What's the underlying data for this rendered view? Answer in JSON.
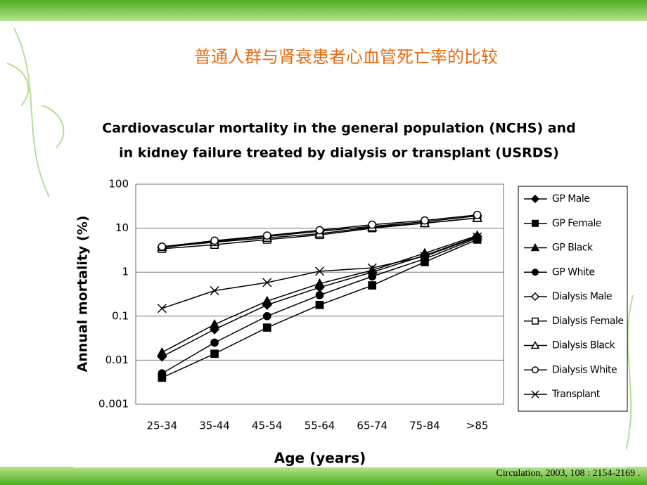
{
  "slide_title": "普通人群与肾衰患者心血管死亡率的比较",
  "citation": "Circulation, 2003, 108 : 2154-2169 .",
  "chart_data": {
    "type": "line",
    "title": [
      "Cardiovascular mortality in the general population (NCHS) and",
      "in kidney failure treated by dialysis or transplant (USRDS)"
    ],
    "x_label": "Age (years)",
    "y_label": "Annual mortality (%)",
    "categories": [
      "25-34",
      "35-44",
      "45-54",
      "55-64",
      "65-74",
      "75-84",
      ">85"
    ],
    "log_scale": true,
    "ylim": [
      0.001,
      100
    ],
    "yticks": [
      0.001,
      0.01,
      0.1,
      1,
      10,
      100
    ],
    "grid": true,
    "legend_position": "right",
    "series": [
      {
        "name": "GP Male",
        "color": "#000000",
        "marker": "diamond",
        "filled": true,
        "values": [
          0.012,
          0.05,
          0.18,
          0.45,
          1.0,
          2.4,
          6.5
        ]
      },
      {
        "name": "GP Female",
        "color": "#000000",
        "marker": "square",
        "filled": true,
        "values": [
          0.004,
          0.014,
          0.055,
          0.18,
          0.5,
          1.7,
          5.5
        ]
      },
      {
        "name": "GP Black",
        "color": "#000000",
        "marker": "triangle",
        "filled": true,
        "values": [
          0.015,
          0.065,
          0.22,
          0.55,
          1.1,
          2.7,
          6.8
        ]
      },
      {
        "name": "GP White",
        "color": "#000000",
        "marker": "circle",
        "filled": true,
        "values": [
          0.005,
          0.025,
          0.1,
          0.3,
          0.8,
          2.0,
          6.0
        ]
      },
      {
        "name": "Dialysis Male",
        "color": "#000000",
        "marker": "diamond",
        "filled": false,
        "values": [
          3.6,
          5,
          6.5,
          8.5,
          11,
          14,
          19
        ]
      },
      {
        "name": "Dialysis Female",
        "color": "#000000",
        "marker": "square",
        "filled": false,
        "values": [
          3.4,
          4.2,
          5.5,
          7,
          10,
          13,
          17
        ]
      },
      {
        "name": "Dialysis Black",
        "color": "#000000",
        "marker": "triangle",
        "filled": false,
        "values": [
          3.7,
          4.8,
          6,
          7.5,
          10.5,
          13,
          17
        ]
      },
      {
        "name": "Dialysis White",
        "color": "#000000",
        "marker": "circle",
        "filled": false,
        "values": [
          3.8,
          5.2,
          6.8,
          9,
          12,
          15,
          20
        ]
      },
      {
        "name": "Transplant",
        "color": "#000000",
        "marker": "x",
        "filled": false,
        "values": [
          0.15,
          0.38,
          0.58,
          1.05,
          1.25,
          2.3,
          6.3
        ]
      }
    ]
  }
}
